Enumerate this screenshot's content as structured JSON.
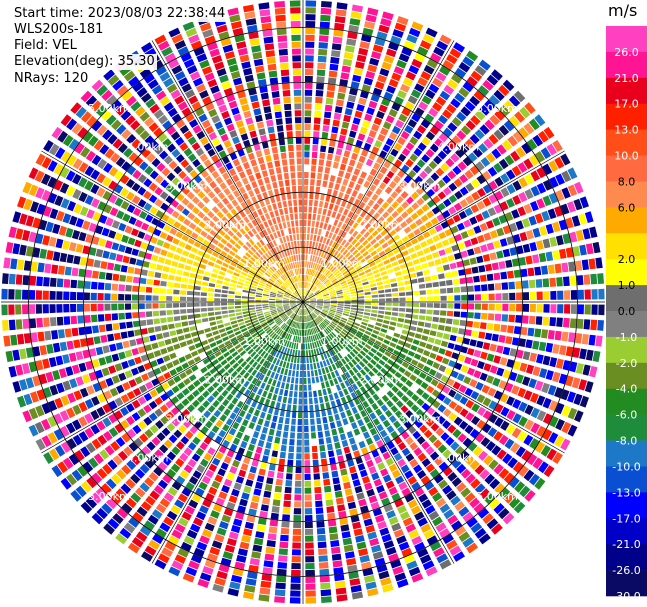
{
  "header": {
    "start_time": "Start time: 2023/08/03 22:38:44",
    "instrument": "WLS200s-181",
    "field": "Field: VEL",
    "elevation": "Elevation(deg): 35.30",
    "nrays": "NRays: 120"
  },
  "chart_data": {
    "type": "heatmap",
    "projection": "polar-ppi",
    "field": "VEL",
    "units": "m/s",
    "nrays": 120,
    "elevation_deg": 35.3,
    "range_ring_labels": [
      "1.00km",
      "2.00km",
      "3.00km",
      "4.00km",
      "5.00km"
    ],
    "range_rings_km": [
      1,
      2,
      3,
      4,
      5
    ],
    "max_range_km": 5.5,
    "colorbar": {
      "unit": "m/s",
      "boundaries": [
        30.0,
        26.0,
        21.0,
        17.0,
        13.0,
        10.0,
        8.0,
        6.0,
        4.0,
        2.0,
        1.0,
        0.0,
        -1.0,
        -2.0,
        -4.0,
        -6.0,
        -8.0,
        -10.0,
        -13.0,
        -17.0,
        -21.0,
        -26.0,
        -30.0
      ],
      "tick_labels": [
        "26.0",
        "21.0",
        "17.0",
        "13.0",
        "10.0",
        "8.0",
        "6.0",
        "2.0",
        "1.0",
        "0.0",
        "-1.0",
        "-2.0",
        "-4.0",
        "-6.0",
        "-8.0",
        "-10.0",
        "-13.0",
        "-17.0",
        "-21.0",
        "-26.0",
        "-30.0"
      ],
      "colors": [
        "#ff40c0",
        "#ff1493",
        "#e8001c",
        "#ff2000",
        "#ff4e18",
        "#ff6a40",
        "#ff8a50",
        "#ffaa00",
        "#ffe000",
        "#ffff00",
        "#6e6e6e",
        "#808080",
        "#9acd32",
        "#6b8e23",
        "#228b22",
        "#1e8c3a",
        "#1e78c8",
        "#0a4fd2",
        "#0000ff",
        "#0000c8",
        "#00008b",
        "#0a0a64"
      ]
    },
    "pattern": {
      "near_range_north": "positive (yellow/orange/red, 2 to 13 m/s)",
      "near_range_south": "negative (green/blue, -2 to -10 m/s)",
      "east_west_axis": "near zero (grey)",
      "beyond_2.5km": "noise (mixed colors)"
    }
  }
}
